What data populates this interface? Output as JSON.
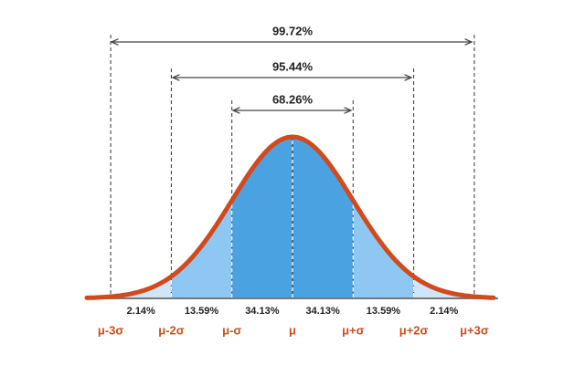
{
  "spans": [
    "99.72%",
    "95.44%",
    "68.26%"
  ],
  "regions": [
    "2.14%",
    "13.59%",
    "34.13%",
    "34.13%",
    "13.59%",
    "2.14%"
  ],
  "sigma_labels": [
    "μ-3σ",
    "μ-2σ",
    "μ-σ",
    "μ",
    "μ+σ",
    "μ+2σ",
    "μ+3σ"
  ]
}
